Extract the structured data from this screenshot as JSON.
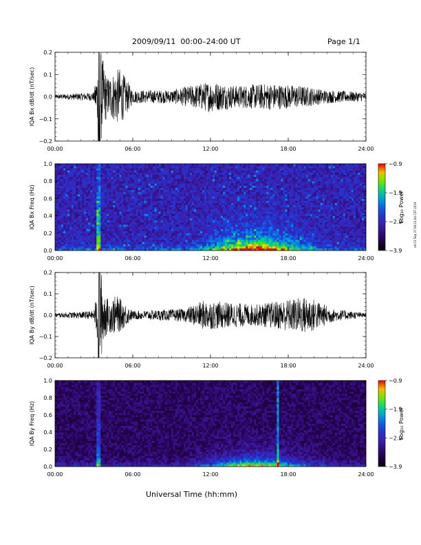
{
  "page": {
    "title": "2009/09/11  00:00–24:00 UT",
    "page_label": "Page 1/1",
    "x_title": "Universal Time (hh:mm)",
    "side_text": "rel 01 Sep 27 08:23:04 CST 2019"
  },
  "chart_data": [
    {
      "type": "line",
      "ylabel": "IQA Bx dB/dt (nT/sec)",
      "x_ticks": [
        "00:00",
        "06:00",
        "12:00",
        "18:00",
        "24:00"
      ],
      "y_ticks": [
        "0.2",
        "0.1",
        "0.0",
        "−0.1",
        "−0.2"
      ],
      "xlim_hours": [
        0,
        24
      ],
      "ylim": [
        -0.2,
        0.2
      ],
      "envelope": [
        {
          "hour": 0,
          "amp": 0.01
        },
        {
          "hour": 3.0,
          "amp": 0.02
        },
        {
          "hour": 3.5,
          "amp": 0.22
        },
        {
          "hour": 4.0,
          "amp": 0.09
        },
        {
          "hour": 5.0,
          "amp": 0.13
        },
        {
          "hour": 6.0,
          "amp": 0.03
        },
        {
          "hour": 9.0,
          "amp": 0.03
        },
        {
          "hour": 10.5,
          "amp": 0.05
        },
        {
          "hour": 12.0,
          "amp": 0.07
        },
        {
          "hour": 14.0,
          "amp": 0.05
        },
        {
          "hour": 16.5,
          "amp": 0.06
        },
        {
          "hour": 19.0,
          "amp": 0.05
        },
        {
          "hour": 21.0,
          "amp": 0.03
        },
        {
          "hour": 24,
          "amp": 0.02
        }
      ]
    },
    {
      "type": "heatmap",
      "ylabel": "IQA Bx Freq (Hz)",
      "x_ticks": [
        "00:00",
        "06:00",
        "12:00",
        "18:00",
        "24:00"
      ],
      "y_ticks": [
        "1.0",
        "0.8",
        "0.6",
        "0.4",
        "0.2",
        "0.0"
      ],
      "xlim_hours": [
        0,
        24
      ],
      "ylim": [
        0,
        1.0
      ],
      "colorbar": {
        "label": "Log₁₀ Power",
        "ticks": [
          "−0.9",
          "−1.9",
          "−2.9",
          "−3.9"
        ],
        "range": [
          -3.9,
          -0.9
        ]
      },
      "background_level": -3.0
    },
    {
      "type": "line",
      "ylabel": "IQA By dB/dt (nT/sec)",
      "x_ticks": [
        "00:00",
        "06:00",
        "12:00",
        "18:00",
        "24:00"
      ],
      "y_ticks": [
        "0.2",
        "0.1",
        "0.0",
        "−0.1",
        "−0.2"
      ],
      "xlim_hours": [
        0,
        24
      ],
      "ylim": [
        -0.2,
        0.2
      ],
      "envelope": [
        {
          "hour": 0,
          "amp": 0.01
        },
        {
          "hour": 3.0,
          "amp": 0.02
        },
        {
          "hour": 3.5,
          "amp": 0.22
        },
        {
          "hour": 4.0,
          "amp": 0.08
        },
        {
          "hour": 4.8,
          "amp": 0.09
        },
        {
          "hour": 6.0,
          "amp": 0.02
        },
        {
          "hour": 10.0,
          "amp": 0.03
        },
        {
          "hour": 11.5,
          "amp": 0.07
        },
        {
          "hour": 13.5,
          "amp": 0.06
        },
        {
          "hour": 15.5,
          "amp": 0.05
        },
        {
          "hour": 19.5,
          "amp": 0.09
        },
        {
          "hour": 21.5,
          "amp": 0.03
        },
        {
          "hour": 24,
          "amp": 0.01
        }
      ]
    },
    {
      "type": "heatmap",
      "ylabel": "IQA By Freq (Hz)",
      "x_ticks": [
        "00:00",
        "06:00",
        "12:00",
        "18:00",
        "24:00"
      ],
      "y_ticks": [
        "1.0",
        "0.8",
        "0.6",
        "0.4",
        "0.2",
        "0.0"
      ],
      "xlim_hours": [
        0,
        24
      ],
      "ylim": [
        0,
        1.0
      ],
      "colorbar": {
        "label": "Log₁₀ Power",
        "ticks": [
          "−0.9",
          "−1.9",
          "−2.9",
          "−3.9"
        ],
        "range": [
          -3.9,
          -0.9
        ]
      },
      "background_level": -3.5
    }
  ]
}
